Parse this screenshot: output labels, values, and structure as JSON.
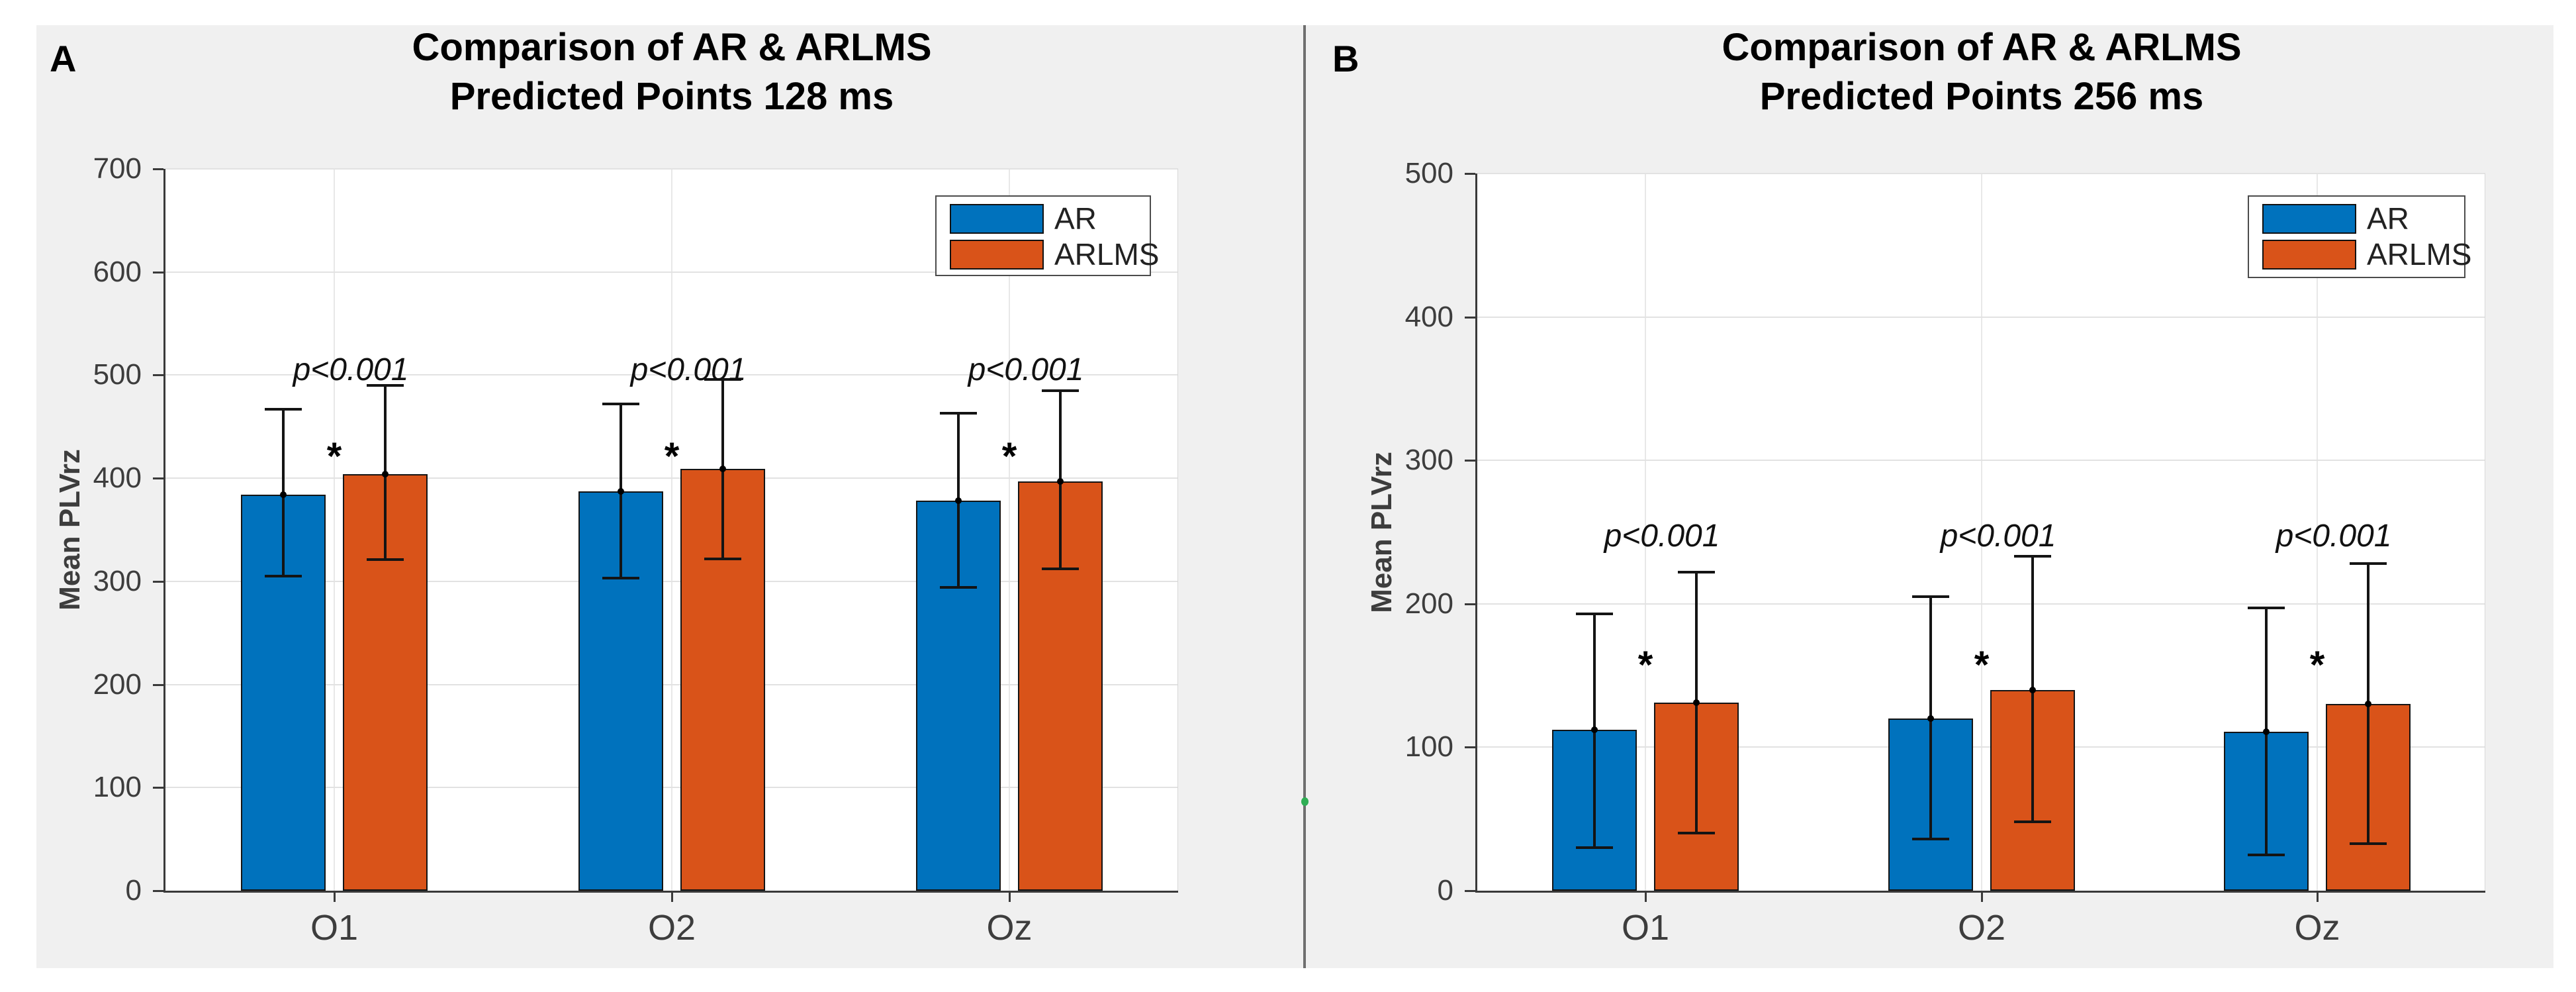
{
  "chart_data": [
    {
      "type": "bar",
      "panel_label": "A",
      "title_line1": "Comparison of AR & ARLMS",
      "title_line2": "Predicted Points 128 ms",
      "ylabel": "Mean PLVrz",
      "categories": [
        "O1",
        "O2",
        "Oz"
      ],
      "ylim": [
        0,
        700
      ],
      "ytick_step": 100,
      "ytick_labels": [
        "0",
        "100",
        "200",
        "300",
        "400",
        "500",
        "600",
        "700"
      ],
      "grid": true,
      "legend_position": "top-right",
      "series": [
        {
          "name": "AR",
          "color": "#0072BD",
          "values": [
            384,
            387,
            378
          ],
          "err_low": [
            305,
            303,
            294
          ],
          "err_high": [
            467,
            472,
            463
          ]
        },
        {
          "name": "ARLMS",
          "color": "#D95319",
          "values": [
            404,
            409,
            397
          ],
          "err_low": [
            321,
            322,
            312
          ],
          "err_high": [
            490,
            496,
            485
          ]
        }
      ],
      "significance": {
        "p_labels": [
          "p<0.001",
          "p<0.001",
          "p<0.001"
        ],
        "p_label_y": 505,
        "asterisk": "*",
        "asterisk_y": 425
      },
      "legend_entries": [
        {
          "label": "AR",
          "color": "#0072BD"
        },
        {
          "label": "ARLMS",
          "color": "#D95319"
        }
      ]
    },
    {
      "type": "bar",
      "panel_label": "B",
      "title_line1": "Comparison of AR & ARLMS",
      "title_line2": "Predicted Points 256 ms",
      "ylabel": "Mean PLVrz",
      "categories": [
        "O1",
        "O2",
        "Oz"
      ],
      "ylim": [
        0,
        500
      ],
      "ytick_step": 100,
      "ytick_labels": [
        "0",
        "100",
        "200",
        "300",
        "400",
        "500"
      ],
      "grid": true,
      "legend_position": "top-right",
      "series": [
        {
          "name": "AR",
          "color": "#0072BD",
          "values": [
            112,
            120,
            111
          ],
          "err_low": [
            30,
            36,
            25
          ],
          "err_high": [
            193,
            205,
            197
          ]
        },
        {
          "name": "ARLMS",
          "color": "#D95319",
          "values": [
            131,
            140,
            130
          ],
          "err_low": [
            40,
            48,
            33
          ],
          "err_high": [
            222,
            233,
            228
          ]
        }
      ],
      "significance": {
        "p_labels": [
          "p<0.001",
          "p<0.001",
          "p<0.001"
        ],
        "p_label_y": 247,
        "asterisk": "*",
        "asterisk_y": 160
      },
      "legend_entries": [
        {
          "label": "AR",
          "color": "#0072BD"
        },
        {
          "label": "ARLMS",
          "color": "#D95319"
        }
      ]
    }
  ],
  "colors": {
    "ar_blue": "#0072BD",
    "arlms_orange": "#D95319",
    "figure_bg": "#F0F0F0",
    "plot_bg": "#FFFFFF",
    "gridline": "#E2E2E2",
    "axis": "#3a3a3a"
  }
}
